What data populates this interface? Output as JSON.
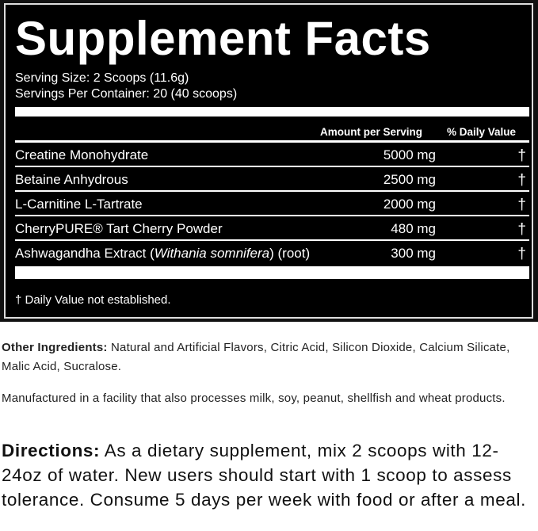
{
  "panel": {
    "title": "Supplement Facts",
    "serving_size": "Serving Size: 2 Scoops (11.6g)",
    "servings_per_container": "Servings Per Container: 20 (40 scoops)",
    "header_amount": "Amount per Serving",
    "header_dv": "% Daily Value",
    "rows": [
      {
        "name": "Creatine Monohydrate",
        "amount": "5000 mg",
        "dv": "†"
      },
      {
        "name": "Betaine Anhydrous",
        "amount": "2500 mg",
        "dv": "†"
      },
      {
        "name": "L-Carnitine L-Tartrate",
        "amount": "2000 mg",
        "dv": "†"
      },
      {
        "name": "CherryPURE® Tart Cherry Powder",
        "amount": "480 mg",
        "dv": "†"
      },
      {
        "name_pre": "Ashwagandha Extract (",
        "name_italic": "Withania somnifera",
        "name_post": ") (root)",
        "amount": "300 mg",
        "dv": "†"
      }
    ],
    "footnote": "† Daily Value not established."
  },
  "other_ingredients": {
    "label": "Other Ingredients:",
    "text": " Natural and Artificial Flavors, Citric Acid, Silicon Dioxide, Calcium Silicate, Malic Acid, Sucralose."
  },
  "allergen": "Manufactured in a facility that also processes milk, soy, peanut, shellfish and wheat products.",
  "directions": {
    "label": "Directions:",
    "text": " As a dietary supplement, mix 2 scoops with 12-24oz of water. New users should start with 1 scoop to assess tolerance. Consume 5 days per week with food or after a meal."
  }
}
